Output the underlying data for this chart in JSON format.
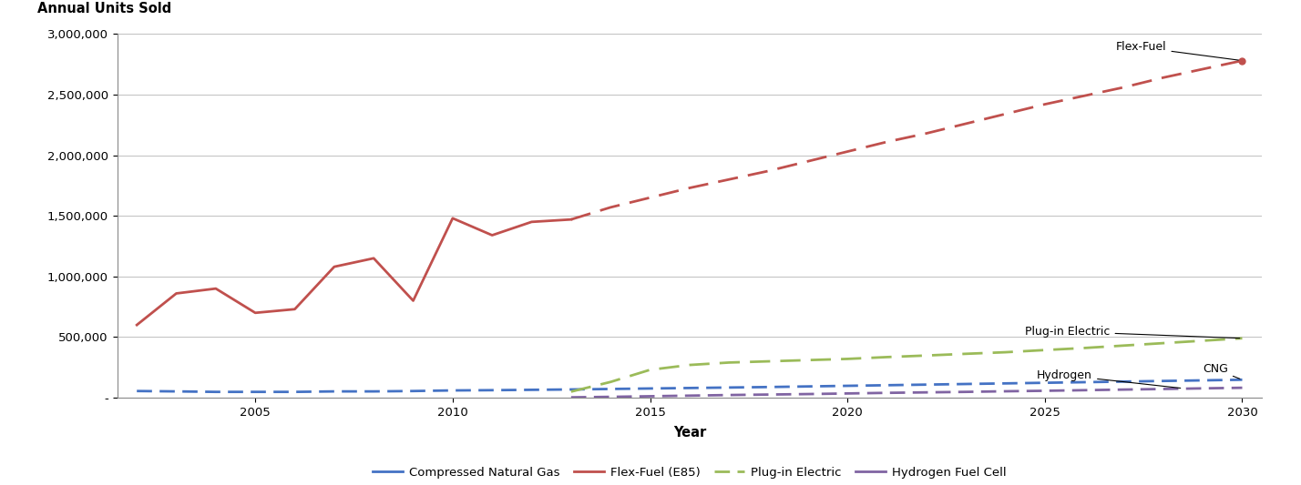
{
  "title_y": "Annual Units Sold",
  "title_x": "Year",
  "background_color": "#ffffff",
  "xlim": [
    2001.5,
    2030.5
  ],
  "ylim": [
    0,
    3000000
  ],
  "yticks": [
    0,
    500000,
    1000000,
    1500000,
    2000000,
    2500000,
    3000000
  ],
  "ytick_labels": [
    "-",
    "500,000",
    "1,000,000",
    "1,500,000",
    "2,000,000",
    "2,500,000",
    "3,000,000"
  ],
  "xticks": [
    2005,
    2010,
    2015,
    2020,
    2025,
    2030
  ],
  "cng": {
    "label": "Compressed Natural Gas",
    "color": "#4472C4",
    "linestyle": "--",
    "linewidth": 2.0,
    "years": [
      2002,
      2003,
      2004,
      2005,
      2006,
      2007,
      2008,
      2009,
      2010,
      2011,
      2012,
      2013,
      2014,
      2015,
      2016,
      2017,
      2018,
      2019,
      2020,
      2021,
      2022,
      2023,
      2024,
      2025,
      2026,
      2027,
      2028,
      2029,
      2030
    ],
    "values": [
      55000,
      52000,
      48000,
      48000,
      48000,
      52000,
      52000,
      55000,
      60000,
      62000,
      65000,
      68000,
      72000,
      76000,
      80000,
      84000,
      88000,
      93000,
      98000,
      103000,
      108000,
      113000,
      118000,
      123000,
      128000,
      133000,
      138000,
      143000,
      148000
    ]
  },
  "flex": {
    "label": "Flex-Fuel (E85)",
    "color": "#C0504D",
    "linewidth": 2.0,
    "years_solid": [
      2002,
      2003,
      2004,
      2005,
      2006,
      2007,
      2008,
      2009,
      2010,
      2011,
      2012,
      2013
    ],
    "values_solid": [
      600000,
      860000,
      900000,
      700000,
      730000,
      1080000,
      1150000,
      800000,
      1480000,
      1340000,
      1450000,
      1470000
    ],
    "years_dash": [
      2013,
      2014,
      2015,
      2016,
      2017,
      2018,
      2019,
      2020,
      2021,
      2022,
      2023,
      2024,
      2025,
      2026,
      2027,
      2028,
      2029,
      2030
    ],
    "values_dash": [
      1470000,
      1570000,
      1650000,
      1730000,
      1800000,
      1870000,
      1950000,
      2030000,
      2110000,
      2180000,
      2260000,
      2340000,
      2420000,
      2490000,
      2560000,
      2640000,
      2710000,
      2780000
    ]
  },
  "phev": {
    "label": "Plug-in Electric",
    "color": "#9BBB59",
    "linestyle": "--",
    "linewidth": 2.0,
    "years": [
      2013,
      2014,
      2015,
      2016,
      2017,
      2018,
      2019,
      2020,
      2021,
      2022,
      2023,
      2024,
      2025,
      2026,
      2027,
      2028,
      2029,
      2030
    ],
    "values": [
      50000,
      130000,
      230000,
      270000,
      290000,
      300000,
      310000,
      320000,
      335000,
      348000,
      362000,
      375000,
      393000,
      410000,
      430000,
      450000,
      470000,
      490000
    ]
  },
  "h2": {
    "label": "Hydrogen Fuel Cell",
    "color": "#8064A2",
    "linestyle": "--",
    "linewidth": 2.0,
    "years": [
      2013,
      2014,
      2015,
      2016,
      2017,
      2018,
      2019,
      2020,
      2021,
      2022,
      2023,
      2024,
      2025,
      2026,
      2027,
      2028,
      2029,
      2030
    ],
    "values": [
      3000,
      7000,
      12000,
      17000,
      22000,
      26000,
      30000,
      35000,
      40000,
      44000,
      48000,
      53000,
      57000,
      62000,
      67000,
      72000,
      77000,
      82000
    ]
  },
  "flex_dot_x": 2030,
  "flex_dot_y": 2780000
}
